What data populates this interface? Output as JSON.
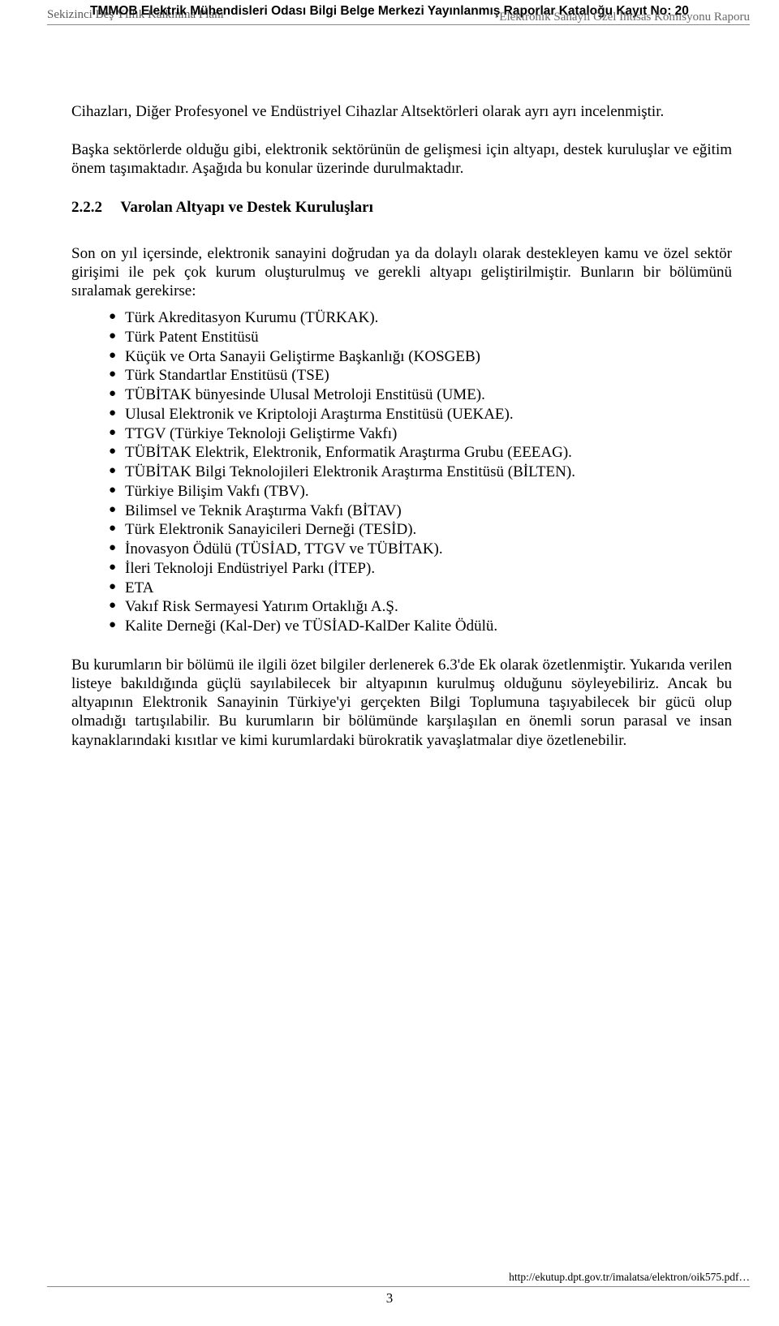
{
  "header": {
    "left": "Sekizinci Beş Yıllık Kalkınma Planı",
    "center": "TMMOB Elektrik Mühendisleri Odası Bilgi Belge Merkezi Yayınlanmış Raporlar Kataloğu Kayıt No: 20",
    "right": "Elektronik Sanayii Özel İhtisas Komisyonu Raporu"
  },
  "body": {
    "p1": "Cihazları, Diğer Profesyonel ve Endüstriyel Cihazlar Altsektörleri olarak ayrı ayrı incelenmiştir.",
    "p2": "Başka sektörlerde olduğu gibi, elektronik sektörünün de gelişmesi için altyapı, destek kuruluşlar ve eğitim önem taşımaktadır. Aşağıda bu konular üzerinde durulmaktadır.",
    "section": {
      "num": "2.2.2",
      "title": "Varolan Altyapı ve Destek Kuruluşları"
    },
    "p3": "Son on yıl içersinde, elektronik sanayini doğrudan ya da dolaylı olarak destekleyen kamu ve özel sektör girişimi ile pek çok kurum oluşturulmuş ve gerekli altyapı geliştirilmiştir. Bunların bir bölümünü sıralamak gerekirse:",
    "items": [
      "Türk Akreditasyon Kurumu (TÜRKAK).",
      "Türk Patent Enstitüsü",
      "Küçük ve Orta Sanayii Geliştirme Başkanlığı (KOSGEB)",
      "Türk Standartlar Enstitüsü (TSE)",
      "TÜBİTAK bünyesinde Ulusal Metroloji Enstitüsü (UME).",
      "Ulusal Elektronik ve Kriptoloji Araştırma Enstitüsü (UEKAE).",
      "TTGV (Türkiye Teknoloji Geliştirme Vakfı)",
      "TÜBİTAK Elektrik, Elektronik, Enformatik Araştırma Grubu (EEEAG).",
      "TÜBİTAK Bilgi Teknolojileri Elektronik Araştırma Enstitüsü (BİLTEN).",
      "Türkiye Bilişim Vakfı (TBV).",
      "Bilimsel ve Teknik Araştırma Vakfı (BİTAV)",
      "Türk Elektronik Sanayicileri Derneği (TESİD).",
      "İnovasyon Ödülü (TÜSİAD, TTGV ve TÜBİTAK).",
      "İleri Teknoloji Endüstriyel Parkı (İTEP).",
      "ETA",
      "Vakıf Risk Sermayesi Yatırım Ortaklığı A.Ş.",
      "Kalite Derneği (Kal-Der) ve TÜSİAD-KalDer Kalite Ödülü."
    ],
    "p4": "Bu kurumların bir bölümü ile ilgili özet bilgiler derlenerek 6.3'de Ek olarak özetlenmiştir. Yukarıda verilen listeye bakıldığında güçlü sayılabilecek bir altyapının kurulmuş olduğunu söyleyebiliriz. Ancak bu altyapının Elektronik Sanayinin Türkiye'yi gerçekten Bilgi Toplumuna taşıyabilecek bir gücü olup olmadığı tartışılabilir. Bu kurumların bir bölümünde karşılaşılan en önemli sorun parasal ve insan kaynaklarındaki kısıtlar ve kimi kurumlardaki bürokratik yavaşlatmalar diye özetlenebilir."
  },
  "footer": {
    "page_number": "3",
    "url": "http://ekutup.dpt.gov.tr/imalatsa/elektron/oik575.pdf…"
  }
}
